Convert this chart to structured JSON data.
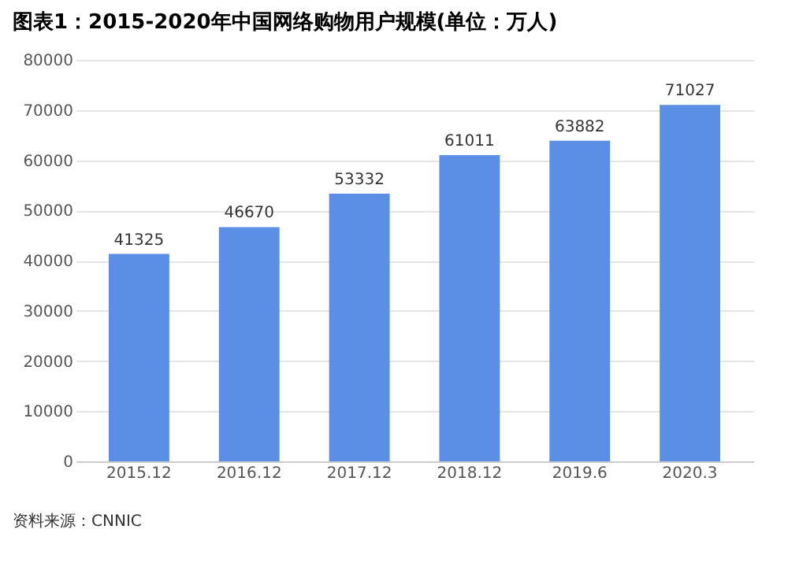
{
  "chart_data": {
    "type": "bar",
    "title": "图表1：2015-2020年中国网络购物用户规模(单位：万人)",
    "categories": [
      "2015.12",
      "2016.12",
      "2017.12",
      "2018.12",
      "2019.6",
      "2020.3"
    ],
    "values": [
      41325,
      46670,
      53332,
      61011,
      63882,
      71027
    ],
    "color": "#5b8fe6",
    "ylim": [
      0,
      80000
    ],
    "yticks": [
      0,
      10000,
      20000,
      30000,
      40000,
      50000,
      60000,
      70000,
      80000
    ],
    "grid": "y",
    "data_labels": true,
    "annotations": [
      "资料来源：CNNIC"
    ]
  }
}
